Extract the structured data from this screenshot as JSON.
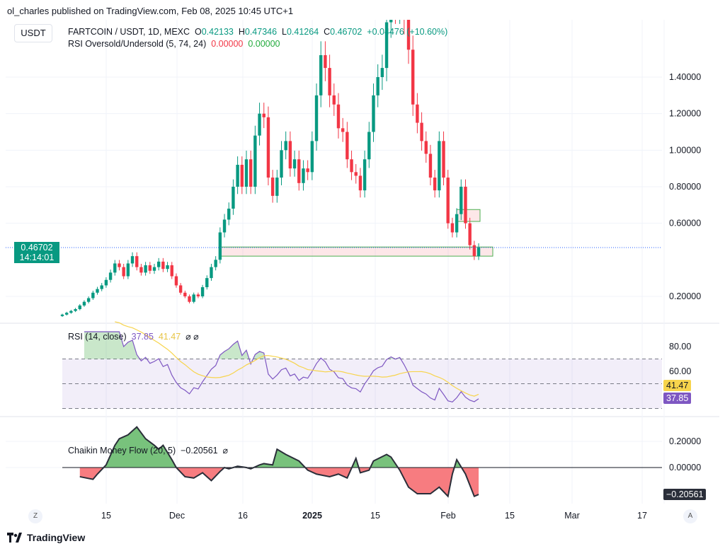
{
  "header": {
    "published": "ol_charles published on TradingView.com, Feb 08, 2025 10:45 UTC+1",
    "currency": "USDT"
  },
  "legend": {
    "symbol": "FARTCOIN / USDT, 1D, MEXC",
    "o_label": "O",
    "o": "0.42133",
    "h_label": "H",
    "h": "0.47346",
    "l_label": "L",
    "l": "0.41264",
    "c_label": "C",
    "c": "0.46702",
    "change": "+0.04476 (+10.60%)",
    "ind_name": "RSI Oversold/Undersold (5, 74, 24)",
    "ind_v1": "0.00000",
    "ind_v2": "0.00000"
  },
  "price_label": {
    "price": "0.46702",
    "countdown": "14:14:01"
  },
  "colors": {
    "up": "#089981",
    "down": "#f23645",
    "rsi": "#7e57c2",
    "rsi_ma": "#f7d44c",
    "cmf_pos": "#78c27c",
    "cmf_neg": "#f77c80",
    "last_line": "#2962ff"
  },
  "chart_data": [
    {
      "type": "candlestick",
      "ylim": [
        0.05,
        1.71
      ],
      "y_ticks": [
        "1.40000",
        "1.20000",
        "1.00000",
        "0.80000",
        "0.60000",
        "0.20000"
      ],
      "x_ticks": [
        "15",
        "Dec",
        "16",
        "2025",
        "15",
        "Feb",
        "15",
        "Mar",
        "17"
      ],
      "zones": [
        {
          "from": 0.42,
          "to": 0.47,
          "start": "Dec 11",
          "end": "Feb 11"
        },
        {
          "from": 0.61,
          "to": 0.675,
          "start": "Feb 03",
          "end": "Feb 08"
        }
      ],
      "candles": [
        [
          "Nov 05",
          0.1
        ],
        [
          "Nov 06",
          0.11
        ],
        [
          "Nov 07",
          0.12
        ],
        [
          "Nov 08",
          0.13
        ],
        [
          "Nov 09",
          0.15
        ],
        [
          "Nov 10",
          0.17
        ],
        [
          "Nov 11",
          0.19
        ],
        [
          "Nov 12",
          0.22
        ],
        [
          "Nov 13",
          0.24
        ],
        [
          "Nov 14",
          0.26
        ],
        [
          "Nov 15",
          0.29
        ],
        [
          "Nov 16",
          0.33
        ],
        [
          "Nov 17",
          0.38
        ],
        [
          "Nov 18",
          0.36
        ],
        [
          "Nov 19",
          0.31
        ],
        [
          "Nov 20",
          0.38
        ],
        [
          "Nov 21",
          0.42
        ],
        [
          "Nov 22",
          0.36
        ],
        [
          "Nov 23",
          0.33
        ],
        [
          "Nov 24",
          0.37
        ],
        [
          "Nov 25",
          0.34
        ],
        [
          "Nov 26",
          0.36
        ],
        [
          "Nov 27",
          0.39
        ],
        [
          "Nov 28",
          0.35
        ],
        [
          "Nov 29",
          0.37
        ],
        [
          "Nov 30",
          0.31
        ],
        [
          "Dec 01",
          0.26
        ],
        [
          "Dec 02",
          0.22
        ],
        [
          "Dec 03",
          0.2
        ],
        [
          "Dec 04",
          0.17
        ],
        [
          "Dec 05",
          0.21
        ],
        [
          "Dec 06",
          0.2
        ],
        [
          "Dec 07",
          0.25
        ],
        [
          "Dec 08",
          0.3
        ],
        [
          "Dec 09",
          0.36
        ],
        [
          "Dec 10",
          0.4
        ],
        [
          "Dec 11",
          0.55
        ],
        [
          "Dec 12",
          0.62
        ],
        [
          "Dec 13",
          0.68
        ],
        [
          "Dec 14",
          0.8
        ],
        [
          "Dec 15",
          0.92
        ],
        [
          "Dec 16",
          0.8
        ],
        [
          "Dec 17",
          0.95
        ],
        [
          "Dec 18",
          0.8
        ],
        [
          "Dec 19",
          1.08
        ],
        [
          "Dec 20",
          1.2
        ],
        [
          "Dec 21",
          1.18
        ],
        [
          "Dec 22",
          0.85
        ],
        [
          "Dec 23",
          0.75
        ],
        [
          "Dec 24",
          0.85
        ],
        [
          "Dec 25",
          1.0
        ],
        [
          "Dec 26",
          1.05
        ],
        [
          "Dec 27",
          0.9
        ],
        [
          "Dec 28",
          0.95
        ],
        [
          "Dec 29",
          0.82
        ],
        [
          "Dec 30",
          0.9
        ],
        [
          "Dec 31",
          0.88
        ],
        [
          "Jan 01",
          1.05
        ],
        [
          "Jan 02",
          1.3
        ],
        [
          "Jan 03",
          1.52
        ],
        [
          "Jan 04",
          1.45
        ],
        [
          "Jan 05",
          1.3
        ],
        [
          "Jan 06",
          1.25
        ],
        [
          "Jan 07",
          1.12
        ],
        [
          "Jan 08",
          1.1
        ],
        [
          "Jan 09",
          0.95
        ],
        [
          "Jan 10",
          0.88
        ],
        [
          "Jan 11",
          0.86
        ],
        [
          "Jan 12",
          0.78
        ],
        [
          "Jan 13",
          0.95
        ],
        [
          "Jan 14",
          1.1
        ],
        [
          "Jan 15",
          1.3
        ],
        [
          "Jan 16",
          1.4
        ],
        [
          "Jan 17",
          1.45
        ],
        [
          "Jan 18",
          1.7
        ],
        [
          "Jan 19",
          1.82
        ],
        [
          "Jan 20",
          1.78
        ],
        [
          "Jan 21",
          1.85
        ],
        [
          "Jan 22",
          1.72
        ],
        [
          "Jan 23",
          1.55
        ],
        [
          "Jan 24",
          1.25
        ],
        [
          "Jan 25",
          1.15
        ],
        [
          "Jan 26",
          1.05
        ],
        [
          "Jan 27",
          0.98
        ],
        [
          "Jan 28",
          0.85
        ],
        [
          "Jan 29",
          0.78
        ],
        [
          "Jan 30",
          1.05
        ],
        [
          "Jan 31",
          0.85
        ],
        [
          "Feb 01",
          0.6
        ],
        [
          "Feb 02",
          0.55
        ],
        [
          "Feb 03",
          0.65
        ],
        [
          "Feb 04",
          0.8
        ],
        [
          "Feb 05",
          0.6
        ],
        [
          "Feb 06",
          0.48
        ],
        [
          "Feb 07",
          0.42
        ],
        [
          "Feb 08",
          0.467
        ]
      ]
    },
    {
      "type": "line",
      "name": "RSI (14, close)",
      "value": "37.85",
      "ma_value": "41.47",
      "ylim": [
        25,
        95
      ],
      "bands": [
        70,
        50,
        30
      ],
      "y_ticks": [
        "80.00",
        "60.00"
      ]
    },
    {
      "type": "area",
      "name": "Chaikin Money Flow (20, 5)",
      "value": "−0.20561",
      "ylim": [
        -0.28,
        0.34
      ],
      "y_ticks": [
        "0.20000",
        "0.00000"
      ],
      "points": [
        [
          "Nov 09",
          -0.07
        ],
        [
          "Nov 12",
          -0.09
        ],
        [
          "Nov 13",
          -0.05
        ],
        [
          "Nov 15",
          0.02
        ],
        [
          "Nov 17",
          0.17
        ],
        [
          "Nov 18",
          0.22
        ],
        [
          "Nov 20",
          0.25
        ],
        [
          "Nov 22",
          0.31
        ],
        [
          "Nov 24",
          0.22
        ],
        [
          "Nov 26",
          0.17
        ],
        [
          "Nov 27",
          0.14
        ],
        [
          "Nov 28",
          0.17
        ],
        [
          "Nov 30",
          0.06
        ],
        [
          "Dec 01",
          0.0
        ],
        [
          "Dec 03",
          -0.07
        ],
        [
          "Dec 05",
          -0.08
        ],
        [
          "Dec 07",
          -0.04
        ],
        [
          "Dec 09",
          -0.1
        ],
        [
          "Dec 11",
          -0.03
        ],
        [
          "Dec 12",
          0.0
        ],
        [
          "Dec 13",
          -0.01
        ],
        [
          "Dec 15",
          0.01
        ],
        [
          "Dec 17",
          0.0
        ],
        [
          "Dec 18",
          -0.01
        ],
        [
          "Dec 20",
          0.02
        ],
        [
          "Dec 21",
          0.03
        ],
        [
          "Dec 23",
          0.02
        ],
        [
          "Dec 24",
          0.14
        ],
        [
          "Dec 26",
          0.1
        ],
        [
          "Dec 29",
          0.05
        ],
        [
          "Dec 31",
          -0.02
        ],
        [
          "Jan 02",
          -0.05
        ],
        [
          "Jan 05",
          -0.07
        ],
        [
          "Jan 07",
          -0.05
        ],
        [
          "Jan 09",
          -0.08
        ],
        [
          "Jan 11",
          0.07
        ],
        [
          "Jan 12",
          -0.04
        ],
        [
          "Jan 14",
          -0.02
        ],
        [
          "Jan 15",
          0.05
        ],
        [
          "Jan 18",
          0.1
        ],
        [
          "Jan 19",
          0.08
        ],
        [
          "Jan 21",
          -0.02
        ],
        [
          "Jan 23",
          -0.15
        ],
        [
          "Jan 25",
          -0.2
        ],
        [
          "Jan 28",
          -0.2
        ],
        [
          "Jan 30",
          -0.15
        ],
        [
          "Feb 01",
          -0.22
        ],
        [
          "Feb 02",
          -0.05
        ],
        [
          "Feb 03",
          0.06
        ],
        [
          "Feb 05",
          -0.05
        ],
        [
          "Feb 07",
          -0.22
        ],
        [
          "Feb 08",
          -0.2056
        ]
      ]
    }
  ],
  "footer": {
    "brand": "TradingView",
    "z_button": "Z",
    "a_button": "A"
  },
  "icons": {
    "hidden": "⌀"
  }
}
